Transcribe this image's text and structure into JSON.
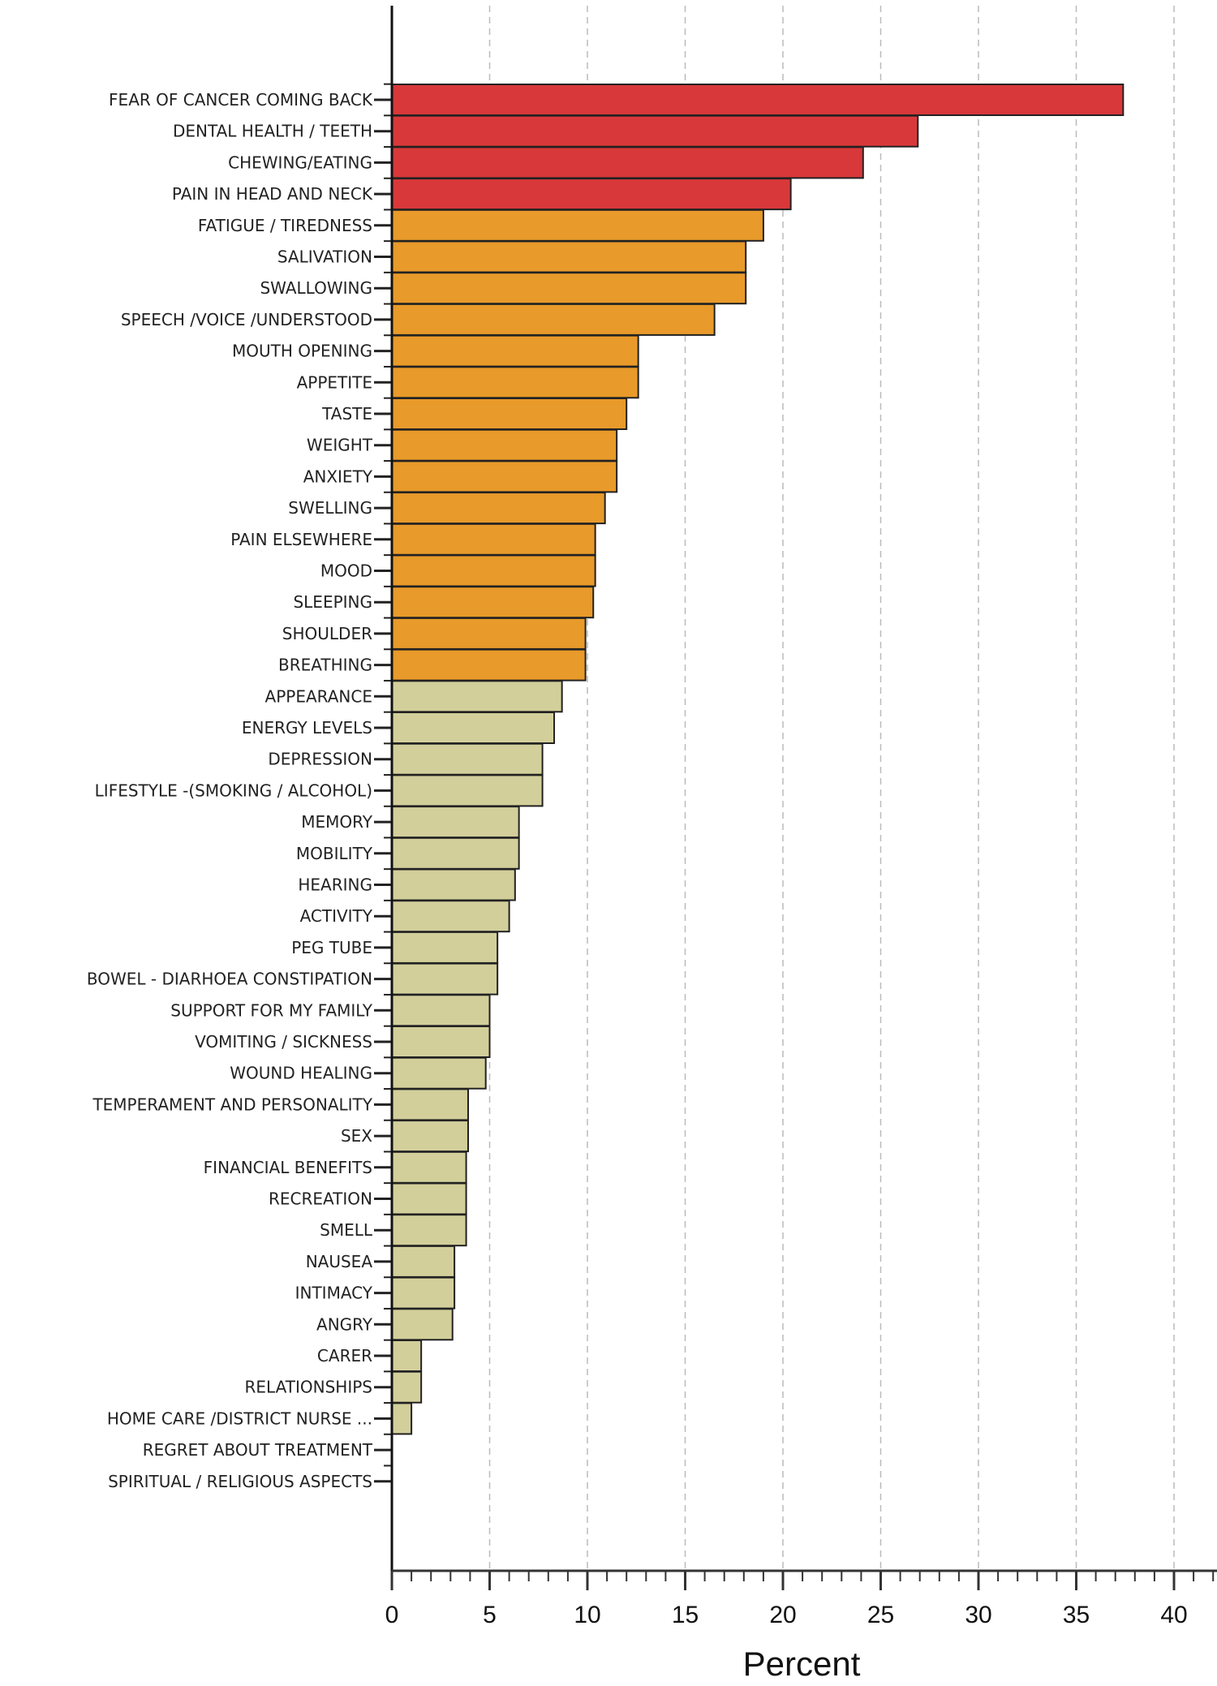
{
  "chart_data": {
    "type": "bar",
    "orientation": "horizontal",
    "xlabel": "Percent",
    "ylabel": "",
    "xlim": [
      0,
      42
    ],
    "xticks": [
      0,
      5,
      10,
      15,
      20,
      25,
      30,
      35,
      40
    ],
    "grid": "vertical dashed",
    "group_colors": {
      "high": "#d9383a",
      "medium": "#e89a2a",
      "low": "#d3cf9b"
    },
    "categories": [
      "FEAR OF CANCER COMING BACK",
      "DENTAL HEALTH / TEETH",
      "CHEWING/EATING",
      "PAIN IN HEAD AND NECK",
      "FATIGUE / TIREDNESS",
      "SALIVATION",
      "SWALLOWING",
      "SPEECH /VOICE /UNDERSTOOD",
      "MOUTH OPENING",
      "APPETITE",
      "TASTE",
      "WEIGHT",
      "ANXIETY",
      "SWELLING",
      "PAIN ELSEWHERE",
      "MOOD",
      "SLEEPING",
      "SHOULDER",
      "BREATHING",
      "APPEARANCE",
      "ENERGY LEVELS",
      "DEPRESSION",
      "LIFESTYLE -(SMOKING / ALCOHOL)",
      "MEMORY",
      "MOBILITY",
      "HEARING",
      "ACTIVITY",
      "PEG TUBE",
      "BOWEL - DIARHOEA CONSTIPATION",
      "SUPPORT FOR MY FAMILY",
      "VOMITING / SICKNESS",
      "WOUND HEALING",
      "TEMPERAMENT AND PERSONALITY",
      "SEX",
      "FINANCIAL BENEFITS",
      "RECREATION",
      "SMELL",
      "NAUSEA",
      "INTIMACY",
      "ANGRY",
      "CARER",
      "RELATIONSHIPS",
      "HOME CARE /DISTRICT NURSE ...",
      "REGRET ABOUT TREATMENT",
      "SPIRITUAL / RELIGIOUS ASPECTS"
    ],
    "values": [
      37.4,
      26.9,
      24.1,
      20.4,
      19.0,
      18.1,
      18.1,
      16.5,
      12.6,
      12.6,
      12.0,
      11.5,
      11.5,
      10.9,
      10.4,
      10.4,
      10.3,
      9.9,
      9.9,
      8.7,
      8.3,
      7.7,
      7.7,
      6.5,
      6.5,
      6.3,
      6.0,
      5.4,
      5.4,
      5.0,
      5.0,
      4.8,
      3.9,
      3.9,
      3.8,
      3.8,
      3.8,
      3.2,
      3.2,
      3.1,
      1.5,
      1.5,
      1.0,
      0,
      0
    ],
    "groups": [
      "high",
      "high",
      "high",
      "high",
      "medium",
      "medium",
      "medium",
      "medium",
      "medium",
      "medium",
      "medium",
      "medium",
      "medium",
      "medium",
      "medium",
      "medium",
      "medium",
      "medium",
      "medium",
      "low",
      "low",
      "low",
      "low",
      "low",
      "low",
      "low",
      "low",
      "low",
      "low",
      "low",
      "low",
      "low",
      "low",
      "low",
      "low",
      "low",
      "low",
      "low",
      "low",
      "low",
      "low",
      "low",
      "low",
      "low",
      "low"
    ]
  }
}
